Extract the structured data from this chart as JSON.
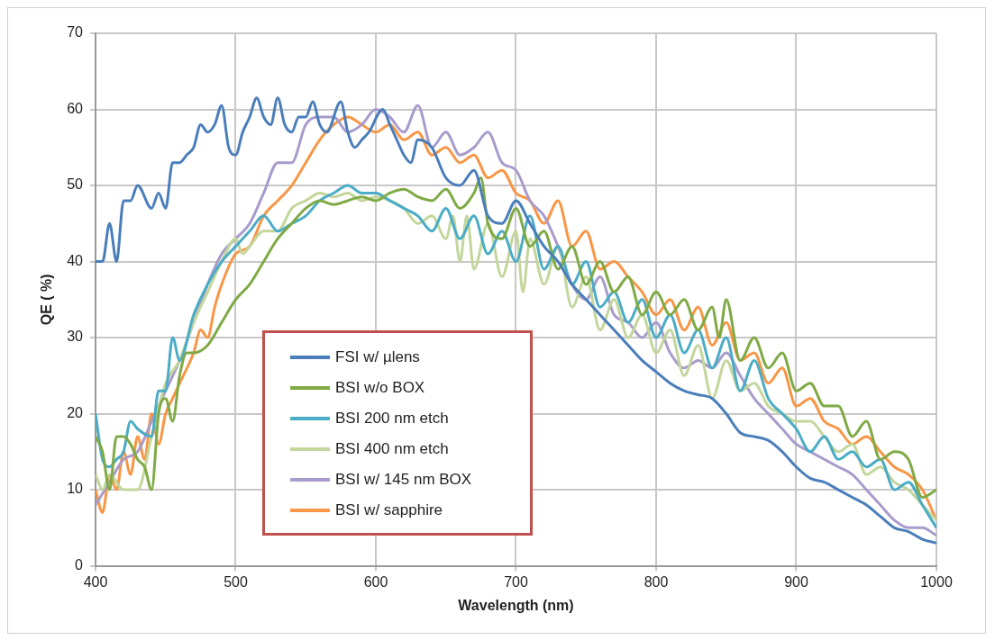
{
  "chart_data": {
    "type": "line",
    "xlabel": "Wavelength (nm)",
    "ylabel": "QE ( %)",
    "xlim": [
      400,
      1000
    ],
    "xticks": [
      400,
      500,
      600,
      700,
      800,
      900,
      1000
    ],
    "ylim": [
      0,
      70
    ],
    "yticks": [
      0,
      10,
      20,
      30,
      40,
      50,
      60,
      70
    ],
    "grid": true,
    "legend": "bottom left",
    "marker": "none",
    "line_style": "solid",
    "series": [
      {
        "name": "FSI w/ µlens",
        "color": "#4a7ebb",
        "x": [
          400,
          405,
          410,
          415,
          420,
          425,
          430,
          440,
          445,
          450,
          455,
          460,
          465,
          470,
          475,
          480,
          485,
          490,
          495,
          500,
          505,
          510,
          515,
          520,
          525,
          530,
          535,
          540,
          545,
          550,
          555,
          560,
          565,
          575,
          580,
          585,
          590,
          595,
          605,
          610,
          615,
          620,
          625,
          630,
          640,
          650,
          660,
          670,
          680,
          690,
          700,
          710,
          720,
          730,
          740,
          750,
          760,
          770,
          780,
          790,
          800,
          810,
          820,
          830,
          840,
          850,
          860,
          870,
          880,
          890,
          900,
          910,
          920,
          930,
          940,
          950,
          960,
          970,
          980,
          990,
          1000
        ],
        "values": [
          40,
          40,
          45,
          40,
          48,
          48,
          50,
          47,
          49,
          47,
          53,
          53,
          54,
          55,
          58,
          57,
          58,
          60.5,
          55,
          54,
          57,
          59,
          61.5,
          59,
          58,
          61.5,
          58,
          57,
          59,
          59,
          61,
          58,
          57,
          61,
          57,
          55,
          56,
          57,
          60,
          58,
          56,
          54,
          53,
          56,
          55,
          51,
          50,
          52,
          46,
          45,
          48,
          45,
          42,
          40,
          37,
          35,
          33,
          31,
          29,
          27,
          25.5,
          24,
          23,
          22.5,
          22,
          20,
          17.5,
          17,
          16.5,
          15,
          13,
          11.5,
          11,
          10,
          9,
          8,
          6.5,
          5,
          4.5,
          3.5,
          3
        ]
      },
      {
        "name": "BSI w/o BOX",
        "color": "#7faa45",
        "x": [
          400,
          405,
          410,
          415,
          420,
          425,
          430,
          435,
          440,
          445,
          450,
          455,
          460,
          465,
          470,
          480,
          490,
          500,
          510,
          520,
          530,
          540,
          550,
          560,
          570,
          580,
          590,
          600,
          610,
          620,
          630,
          640,
          650,
          660,
          670,
          675,
          680,
          690,
          700,
          710,
          720,
          730,
          740,
          750,
          760,
          770,
          780,
          790,
          800,
          810,
          820,
          830,
          840,
          845,
          850,
          860,
          870,
          880,
          890,
          900,
          910,
          920,
          930,
          940,
          950,
          960,
          970,
          980,
          990,
          1000
        ],
        "values": [
          17,
          15,
          10,
          17,
          17,
          16,
          14,
          13,
          10,
          20,
          22,
          19,
          25,
          28,
          28,
          29,
          32,
          35,
          37,
          40,
          43,
          45,
          47,
          48,
          47.5,
          48,
          48.5,
          48,
          49,
          49.5,
          48.5,
          48,
          49.5,
          47,
          49,
          51,
          45,
          43,
          47,
          42,
          44,
          39,
          42,
          37,
          40,
          36,
          38,
          33,
          36,
          33,
          35,
          31,
          34,
          30,
          35,
          27,
          30,
          26,
          28,
          23,
          24,
          21,
          21,
          17,
          19,
          14,
          15,
          14,
          9,
          10
        ]
      },
      {
        "name": "BSI 200 nm etch",
        "color": "#4bacc6",
        "x": [
          400,
          405,
          410,
          415,
          420,
          425,
          430,
          440,
          445,
          450,
          455,
          460,
          470,
          480,
          490,
          500,
          510,
          520,
          530,
          540,
          550,
          560,
          570,
          580,
          590,
          600,
          610,
          620,
          630,
          640,
          650,
          660,
          670,
          680,
          690,
          700,
          710,
          720,
          730,
          740,
          750,
          760,
          770,
          780,
          790,
          800,
          810,
          820,
          830,
          840,
          850,
          860,
          870,
          880,
          890,
          900,
          910,
          920,
          930,
          940,
          950,
          960,
          970,
          980,
          990,
          1000
        ],
        "values": [
          20,
          14,
          13,
          14,
          15,
          19,
          18,
          17,
          23,
          23,
          30,
          27,
          33,
          37,
          40,
          42,
          44,
          46,
          44,
          45,
          46,
          48,
          49,
          50,
          49,
          49,
          48,
          47,
          46,
          44,
          47,
          43,
          46,
          41,
          44,
          40,
          46,
          39,
          42,
          37,
          40,
          34,
          36,
          32,
          35,
          30,
          33,
          28,
          31,
          26,
          30,
          23,
          27,
          22,
          20,
          18,
          15,
          17,
          14,
          15,
          13,
          14,
          10,
          11,
          8,
          5
        ]
      },
      {
        "name": "BSI 400 nm etch",
        "color": "#c3d69b",
        "x": [
          400,
          405,
          410,
          420,
          430,
          440,
          450,
          460,
          470,
          480,
          490,
          500,
          505,
          510,
          520,
          530,
          540,
          550,
          560,
          570,
          580,
          590,
          600,
          610,
          620,
          630,
          640,
          650,
          655,
          660,
          665,
          670,
          680,
          690,
          700,
          705,
          710,
          720,
          730,
          740,
          750,
          760,
          770,
          780,
          790,
          800,
          810,
          820,
          830,
          840,
          850,
          860,
          870,
          880,
          890,
          900,
          910,
          920,
          930,
          940,
          950,
          960,
          970,
          980,
          990,
          1000
        ],
        "values": [
          12,
          10,
          12,
          10,
          10,
          17,
          24,
          27,
          32,
          36,
          40,
          43,
          41,
          42,
          44,
          44,
          47,
          48,
          49,
          48.5,
          49,
          48,
          48.5,
          48,
          47,
          45,
          46,
          43,
          46,
          40,
          46,
          39,
          45,
          38,
          44,
          36,
          43,
          37,
          42,
          34,
          38,
          31,
          35,
          30,
          33,
          28,
          31,
          25,
          29,
          22,
          27,
          23,
          24,
          21,
          20,
          19,
          19,
          17,
          15,
          16,
          12,
          13,
          11,
          10,
          8,
          6
        ]
      },
      {
        "name": "BSI w/ 145 nm BOX",
        "color": "#a99bcb",
        "x": [
          400,
          410,
          420,
          430,
          440,
          450,
          460,
          470,
          480,
          490,
          500,
          510,
          520,
          530,
          540,
          550,
          560,
          570,
          580,
          590,
          600,
          610,
          620,
          630,
          640,
          650,
          660,
          670,
          680,
          690,
          700,
          710,
          720,
          730,
          740,
          750,
          760,
          770,
          780,
          790,
          800,
          810,
          820,
          830,
          840,
          850,
          860,
          870,
          880,
          890,
          900,
          910,
          920,
          930,
          940,
          950,
          960,
          970,
          980,
          990,
          1000
        ],
        "values": [
          8,
          11,
          14,
          15,
          19,
          23,
          27,
          32,
          37,
          41,
          43,
          45,
          49,
          53,
          53,
          58,
          59,
          59,
          57,
          58,
          60,
          59,
          57,
          60.5,
          55,
          57,
          54,
          55,
          57,
          53,
          52,
          48,
          46,
          42,
          37,
          35,
          38,
          33,
          32,
          30,
          32,
          28,
          26,
          27,
          26,
          28,
          25,
          22,
          20,
          18,
          16,
          15,
          14,
          13,
          12,
          10,
          8,
          6,
          5,
          5,
          4
        ]
      },
      {
        "name": "BSI w/ sapphire",
        "color": "#f79646",
        "x": [
          400,
          405,
          410,
          415,
          420,
          425,
          430,
          435,
          440,
          445,
          450,
          455,
          460,
          470,
          475,
          480,
          485,
          490,
          500,
          510,
          520,
          530,
          540,
          550,
          560,
          570,
          580,
          590,
          600,
          610,
          620,
          630,
          640,
          650,
          660,
          670,
          680,
          690,
          700,
          710,
          720,
          730,
          740,
          750,
          760,
          770,
          780,
          790,
          800,
          810,
          820,
          830,
          840,
          850,
          860,
          870,
          880,
          890,
          900,
          910,
          920,
          930,
          940,
          950,
          960,
          970,
          980,
          990,
          1000
        ],
        "values": [
          10,
          7,
          12,
          10,
          15,
          12,
          17,
          14,
          20,
          16,
          20,
          22,
          24,
          28,
          31,
          30,
          34,
          37,
          41,
          42,
          46,
          48,
          50,
          53,
          56,
          58,
          59,
          58,
          57,
          58,
          56,
          57,
          54,
          55,
          53,
          54,
          51,
          52,
          49,
          48,
          45,
          48,
          42,
          44,
          39,
          40,
          38,
          36,
          33,
          35,
          31,
          34,
          29,
          32,
          27,
          28,
          24,
          26,
          21,
          22,
          19,
          18,
          16,
          17,
          15,
          13,
          12,
          10,
          6
        ]
      }
    ]
  }
}
